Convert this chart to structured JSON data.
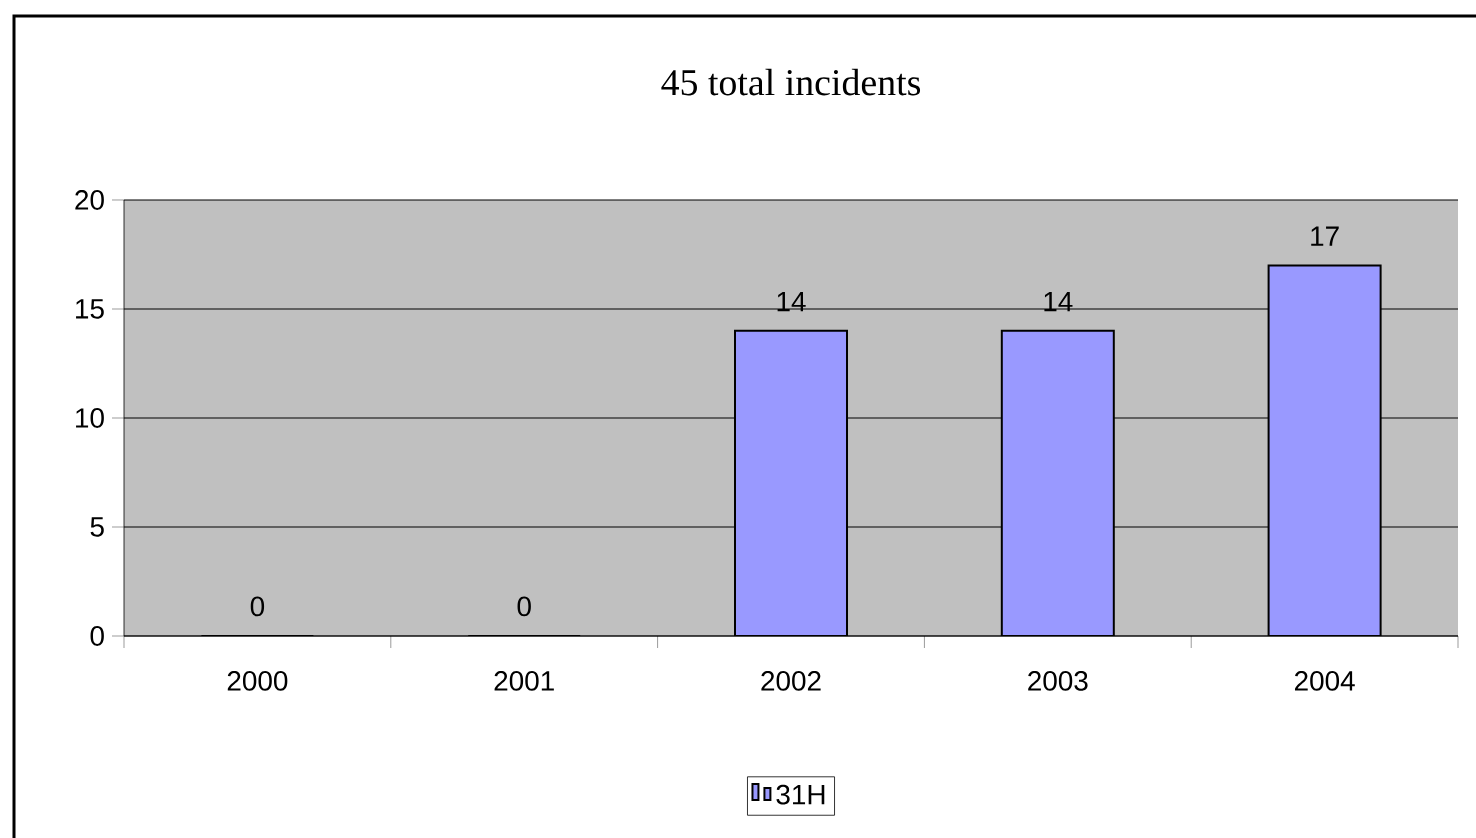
{
  "chart_data": {
    "type": "bar",
    "title": "45 total incidents",
    "categories": [
      "2000",
      "2001",
      "2002",
      "2003",
      "2004"
    ],
    "series": [
      {
        "name": "31H",
        "color": "#9999ff",
        "values": [
          0,
          0,
          14,
          14,
          17
        ]
      }
    ],
    "ylim": [
      0,
      20
    ],
    "yticks": [
      0,
      5,
      10,
      15,
      20
    ],
    "grid": "y",
    "legend": "bottom",
    "data_labels": true
  }
}
